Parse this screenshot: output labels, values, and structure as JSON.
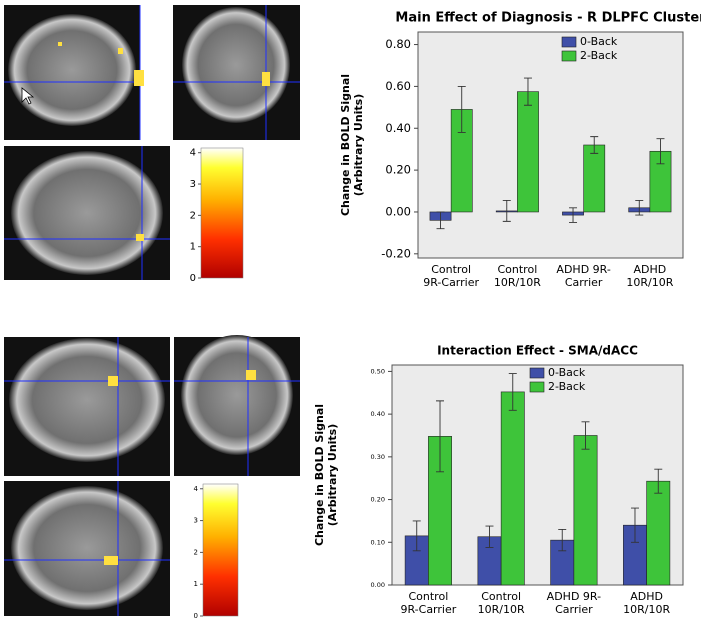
{
  "chart_data": [
    {
      "type": "bar",
      "title": "Main Effect of Diagnosis - R DLPFC Cluster",
      "ylabel": [
        "Change in BOLD Signal",
        "(Arbitrary Units)"
      ],
      "categories": [
        [
          "Control",
          "9R-Carrier"
        ],
        [
          "Control",
          "10R/10R"
        ],
        [
          "ADHD 9R-",
          "Carrier"
        ],
        [
          "ADHD",
          "10R/10R"
        ]
      ],
      "series": [
        {
          "name": "0-Back",
          "color": "#3f4fa8",
          "values": [
            -0.04,
            0.005,
            -0.015,
            0.02
          ],
          "errors": [
            0.04,
            0.05,
            0.035,
            0.035
          ]
        },
        {
          "name": "2-Back",
          "color": "#3ec43a",
          "values": [
            0.49,
            0.575,
            0.32,
            0.29
          ],
          "errors": [
            0.11,
            0.065,
            0.04,
            0.06
          ]
        }
      ],
      "ylim": [
        -0.22,
        0.86
      ],
      "yticks": [
        {
          "value": -0.2,
          "label": "-0.20"
        },
        {
          "value": 0,
          "label": "0.00"
        },
        {
          "value": 0.2,
          "label": "0.20"
        },
        {
          "value": 0.4,
          "label": "0.40"
        },
        {
          "value": 0.6,
          "label": "0.60"
        },
        {
          "value": 0.8,
          "label": "0.80"
        }
      ],
      "legend": "upper-left"
    },
    {
      "type": "bar",
      "title": "Interaction Effect - SMA/dACC",
      "ylabel": [
        "Change in BOLD Signal",
        "(Arbitrary Units)"
      ],
      "categories": [
        [
          "Control",
          "9R-Carrier"
        ],
        [
          "Control",
          "10R/10R"
        ],
        [
          "ADHD 9R-",
          "Carrier"
        ],
        [
          "ADHD",
          "10R/10R"
        ]
      ],
      "series": [
        {
          "name": "0-Back",
          "color": "#3f4fa8",
          "values": [
            0.115,
            0.113,
            0.105,
            0.14
          ],
          "errors": [
            0.035,
            0.025,
            0.025,
            0.04
          ]
        },
        {
          "name": "2-Back",
          "color": "#3ec43a",
          "values": [
            0.348,
            0.452,
            0.35,
            0.243
          ],
          "errors": [
            0.083,
            0.043,
            0.032,
            0.028
          ]
        }
      ],
      "ylim": [
        0,
        0.515
      ],
      "yticks": [
        {
          "value": 0,
          "label": "0.00"
        },
        {
          "value": 0.1,
          "label": "0.10"
        },
        {
          "value": 0.2,
          "label": "0.20"
        },
        {
          "value": 0.3,
          "label": "0.30"
        },
        {
          "value": 0.4,
          "label": "0.40"
        },
        {
          "value": 0.5,
          "label": "0.50"
        }
      ],
      "legend": "upper-left"
    }
  ],
  "colorbars": [
    {
      "lim": [
        0,
        4.15
      ],
      "ticks": [
        0,
        1,
        2,
        3,
        4
      ]
    },
    {
      "lim": [
        0,
        4.15
      ],
      "ticks": [
        0,
        1,
        2,
        3,
        4
      ]
    }
  ]
}
